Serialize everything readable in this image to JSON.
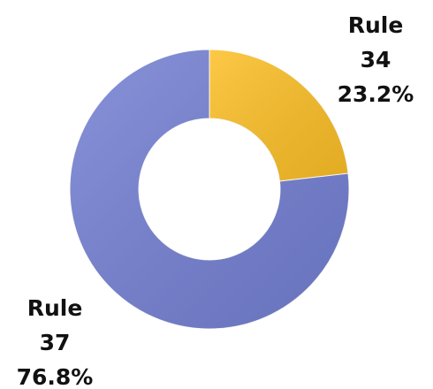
{
  "chart_data": {
    "type": "donut",
    "categories": [
      "Rule 34",
      "Rule 37"
    ],
    "values": [
      23.2,
      76.8
    ],
    "value_labels": [
      "23.2%",
      "76.8%"
    ],
    "colors": [
      "#fcbf26",
      "#7480d3"
    ]
  }
}
